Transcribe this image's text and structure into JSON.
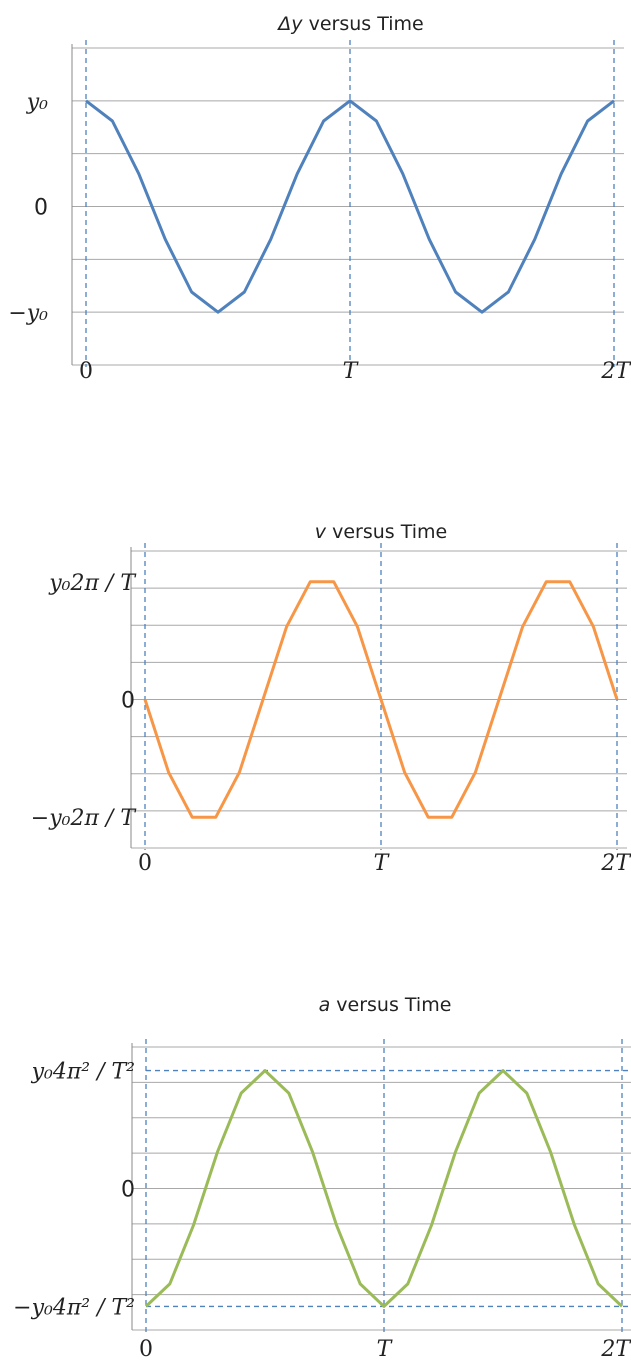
{
  "chart_data": [
    {
      "type": "line",
      "title_symbol": "Δy",
      "title_rest": " versus Time",
      "x": [
        0,
        0.1,
        0.2,
        0.3,
        0.4,
        0.5,
        0.6,
        0.7,
        0.8,
        0.9,
        1.0,
        1.1,
        1.2,
        1.3,
        1.4,
        1.5,
        1.6,
        1.7,
        1.8,
        1.9,
        2.0
      ],
      "series": [
        {
          "color": "#4f81bd",
          "values": [
            1,
            0.809,
            0.309,
            -0.309,
            -0.809,
            -1,
            -0.809,
            -0.309,
            0.309,
            0.809,
            1,
            0.809,
            0.309,
            -0.309,
            -0.809,
            -1,
            -0.809,
            -0.309,
            0.309,
            0.809,
            1
          ]
        }
      ],
      "ylim": [
        -1.5,
        1.5
      ],
      "xlim": [
        0,
        2
      ],
      "y_ticks": [
        {
          "value": 1,
          "label": "y₀",
          "style": "serif-it"
        },
        {
          "value": 0,
          "label": "0",
          "style": "sans"
        },
        {
          "value": -1,
          "label": "−y₀",
          "style": "serif-it"
        }
      ],
      "x_ticks": [
        {
          "value": 0,
          "label": "0",
          "style": "serif"
        },
        {
          "value": 1,
          "label": "T",
          "style": "serif-it"
        },
        {
          "value": 2,
          "label": "2T",
          "style": "serif-it"
        }
      ],
      "grid": true
    },
    {
      "type": "line",
      "title_symbol": "v",
      "title_rest": " versus Time",
      "x": [
        0,
        0.1,
        0.2,
        0.3,
        0.4,
        0.5,
        0.6,
        0.7,
        0.8,
        0.9,
        1.0,
        1.1,
        1.2,
        1.3,
        1.4,
        1.5,
        1.6,
        1.7,
        1.8,
        1.9,
        2.0
      ],
      "series": [
        {
          "color": "#f79646",
          "values": [
            0,
            -0.588,
            -0.951,
            -0.951,
            -0.588,
            0,
            0.588,
            0.951,
            0.951,
            0.588,
            0,
            -0.588,
            -0.951,
            -0.951,
            -0.588,
            0,
            0.588,
            0.951,
            0.951,
            0.588,
            0
          ]
        }
      ],
      "ylim": [
        -1.2,
        1.2
      ],
      "xlim": [
        0,
        2
      ],
      "y_ticks": [
        {
          "value": 0.951,
          "label": "y₀2π / T",
          "style": "serif-it"
        },
        {
          "value": 0,
          "label": "0",
          "style": "sans"
        },
        {
          "value": -0.951,
          "label": "−y₀2π / T",
          "style": "serif-it"
        }
      ],
      "x_ticks": [
        {
          "value": 0,
          "label": "0",
          "style": "serif"
        },
        {
          "value": 1,
          "label": "T",
          "style": "serif-it"
        },
        {
          "value": 2,
          "label": "2T",
          "style": "serif-it"
        }
      ],
      "grid": true
    },
    {
      "type": "line",
      "title_symbol": "a",
      "title_rest": " versus Time",
      "x": [
        0,
        0.1,
        0.2,
        0.3,
        0.4,
        0.5,
        0.6,
        0.7,
        0.8,
        0.9,
        1.0,
        1.1,
        1.2,
        1.3,
        1.4,
        1.5,
        1.6,
        1.7,
        1.8,
        1.9,
        2.0
      ],
      "series": [
        {
          "color": "#9bbb59",
          "values": [
            -1,
            -0.809,
            -0.309,
            0.309,
            0.809,
            1,
            0.809,
            0.309,
            -0.309,
            -0.809,
            -1,
            -0.809,
            -0.309,
            0.309,
            0.809,
            1,
            0.809,
            0.309,
            -0.309,
            -0.809,
            -1
          ]
        }
      ],
      "ylim": [
        -1.2,
        1.2
      ],
      "xlim": [
        0,
        2
      ],
      "y_ticks": [
        {
          "value": 1,
          "label": "y₀4π² / T²",
          "style": "serif-it"
        },
        {
          "value": 0,
          "label": "0",
          "style": "sans"
        },
        {
          "value": -1,
          "label": "−y₀4π² / T²",
          "style": "serif-it"
        }
      ],
      "x_ticks": [
        {
          "value": 0,
          "label": "0",
          "style": "serif"
        },
        {
          "value": 1,
          "label": "T",
          "style": "serif-it"
        },
        {
          "value": 2,
          "label": "2T",
          "style": "serif-it"
        }
      ],
      "extremum_lines": true,
      "grid": true
    }
  ]
}
